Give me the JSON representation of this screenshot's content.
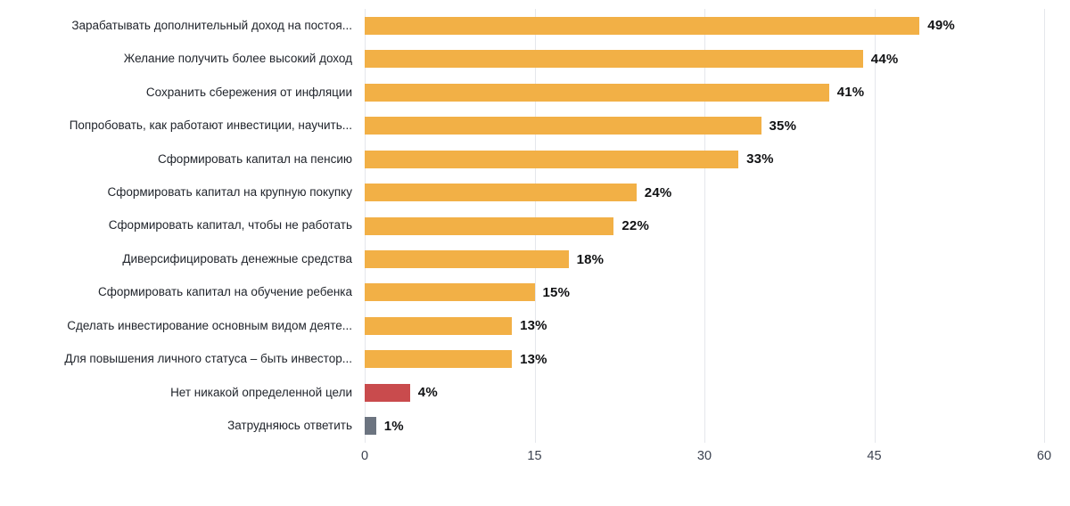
{
  "chart_data": {
    "type": "bar",
    "orientation": "horizontal",
    "title": "",
    "categories": [
      "Зарабатывать дополнительный доход на постоя...",
      "Желание получить более высокий доход",
      "Сохранить сбережения от инфляции",
      "Попробовать, как работают инвестиции, научить...",
      "Сформировать капитал на пенсию",
      "Сформировать капитал на крупную покупку",
      "Сформировать капитал, чтобы не работать",
      "Диверсифицировать денежные средства",
      "Сформировать капитал на обучение ребенка",
      "Сделать инвестирование основным видом деяте...",
      "Для повышения личного статуса – быть инвестор...",
      "Нет никакой определенной цели",
      "Затрудняюсь ответить"
    ],
    "values": [
      49,
      44,
      41,
      35,
      33,
      24,
      22,
      18,
      15,
      13,
      13,
      4,
      1
    ],
    "value_labels": [
      "49%",
      "44%",
      "41%",
      "35%",
      "33%",
      "24%",
      "22%",
      "18%",
      "15%",
      "13%",
      "13%",
      "4%",
      "1%"
    ],
    "bar_colors": [
      "#F2B046",
      "#F2B046",
      "#F2B046",
      "#F2B046",
      "#F2B046",
      "#F2B046",
      "#F2B046",
      "#F2B046",
      "#F2B046",
      "#F2B046",
      "#F2B046",
      "#C94B4D",
      "#6C7480"
    ],
    "xlim": [
      0,
      60
    ],
    "x_ticks": [
      0,
      15,
      30,
      45,
      60
    ],
    "grid": true,
    "legend": false
  },
  "colors": {
    "bar_orange": "#F2B046",
    "bar_red": "#C94B4D",
    "bar_gray": "#6C7480",
    "gridline": "#E5E7EC",
    "tick_text": "#3C4250",
    "category_text": "#21252C",
    "value_text": "#111214",
    "background": "#FFFFFF"
  }
}
